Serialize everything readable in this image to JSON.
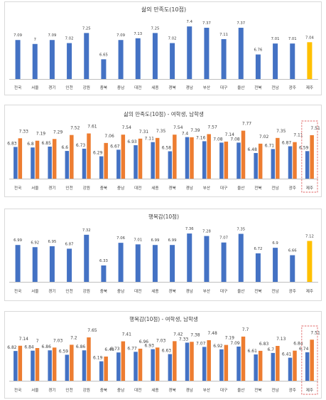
{
  "colors": {
    "blue": "#4472c4",
    "orange": "#ed7d31",
    "gold": "#ffc000",
    "highlight_box": "#e06666",
    "axis": "#bfbfbf",
    "label": "#404040"
  },
  "chart_data": [
    {
      "type": "bar",
      "title": "삶의 만족도(10점)",
      "categories": [
        "전국",
        "서울",
        "경기",
        "인천",
        "강원",
        "충북",
        "충남",
        "대전",
        "세종",
        "경북",
        "경남",
        "부산",
        "대구",
        "울산",
        "전북",
        "전남",
        "광주",
        "제주"
      ],
      "series": [
        {
          "values": [
            7.09,
            7.0,
            7.09,
            7.02,
            7.25,
            6.65,
            7.09,
            7.13,
            7.25,
            7.02,
            7.4,
            7.37,
            7.11,
            7.37,
            6.76,
            7.01,
            7.01,
            7.04
          ]
        }
      ],
      "highlight_category": "제주",
      "highlight_style": "gold-bar",
      "ylim": [
        6.2,
        7.5
      ]
    },
    {
      "type": "bar",
      "title": "삶의 만족도(10점) - 여학생, 남학생",
      "categories": [
        "전국",
        "서울",
        "경기",
        "인천",
        "강원",
        "충북",
        "충남",
        "대전",
        "세종",
        "경북",
        "경남",
        "부산",
        "대구",
        "울산",
        "전북",
        "전남",
        "광주",
        "제주"
      ],
      "series": [
        {
          "values": [
            6.83,
            6.8,
            6.85,
            6.6,
            6.73,
            6.29,
            6.67,
            6.93,
            7.11,
            6.58,
            7.4,
            7.16,
            7.08,
            7.08,
            6.48,
            6.71,
            6.87,
            6.59
          ]
        },
        {
          "values": [
            7.33,
            7.19,
            7.29,
            7.52,
            7.61,
            7.06,
            7.54,
            7.31,
            7.35,
            7.54,
            7.39,
            7.57,
            7.14,
            7.77,
            7.02,
            7.35,
            7.11,
            7.51
          ]
        }
      ],
      "highlight_category": "제주",
      "highlight_style": "dashed-box",
      "ylim": [
        5.0,
        8.0
      ]
    },
    {
      "type": "bar",
      "title": "행복감(10점)",
      "categories": [
        "전국",
        "서울",
        "경기",
        "인천",
        "강원",
        "충북",
        "충남",
        "대전",
        "세종",
        "경북",
        "경남",
        "부산",
        "대구",
        "울산",
        "전북",
        "전남",
        "광주",
        "제주"
      ],
      "series": [
        {
          "values": [
            6.99,
            6.92,
            6.95,
            6.87,
            7.32,
            6.33,
            7.06,
            7.01,
            6.99,
            6.99,
            7.36,
            7.28,
            7.07,
            7.35,
            6.72,
            6.9,
            6.66,
            7.12
          ]
        }
      ],
      "highlight_category": "제주",
      "highlight_style": "gold-bar",
      "ylim": [
        5.8,
        7.5
      ]
    },
    {
      "type": "bar",
      "title": "행복감(10점) - 여학생, 남학생",
      "categories": [
        "전국",
        "서울",
        "경기",
        "인천",
        "강원",
        "충북",
        "충남",
        "대전",
        "세종",
        "경북",
        "경남",
        "부산",
        "대구",
        "울산",
        "전북",
        "전남",
        "광주",
        "제주"
      ],
      "series": [
        {
          "values": [
            6.82,
            6.84,
            6.86,
            6.59,
            6.86,
            6.19,
            6.73,
            6.77,
            6.93,
            6.63,
            7.33,
            7.07,
            6.92,
            7.09,
            6.61,
            6.7,
            6.41,
            6.74
          ]
        },
        {
          "values": [
            7.14,
            7.0,
            7.03,
            7.2,
            7.65,
            6.48,
            7.41,
            6.96,
            7.03,
            7.42,
            7.38,
            7.48,
            7.19,
            7.7,
            6.83,
            7.13,
            6.84,
            7.51
          ]
        }
      ],
      "highlight_category": "제주",
      "highlight_style": "dashed-box",
      "ylim": [
        5.0,
        8.0
      ]
    }
  ]
}
